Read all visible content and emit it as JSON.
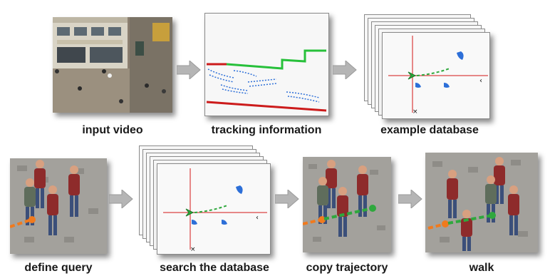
{
  "steps": {
    "input_video": "input video",
    "tracking": "tracking information",
    "example_db": "example database",
    "define_query": "define query",
    "search_db": "search the database",
    "copy_trajectory": "copy trajectory",
    "walk": "walk"
  },
  "colors": {
    "red_track": "#cc1b1b",
    "green_track": "#27c03a",
    "blue_track": "#2d6fd8",
    "query_orange": "#f07a1e",
    "copy_green": "#2fa83d",
    "arrow_gray": "#b5b5b5"
  }
}
